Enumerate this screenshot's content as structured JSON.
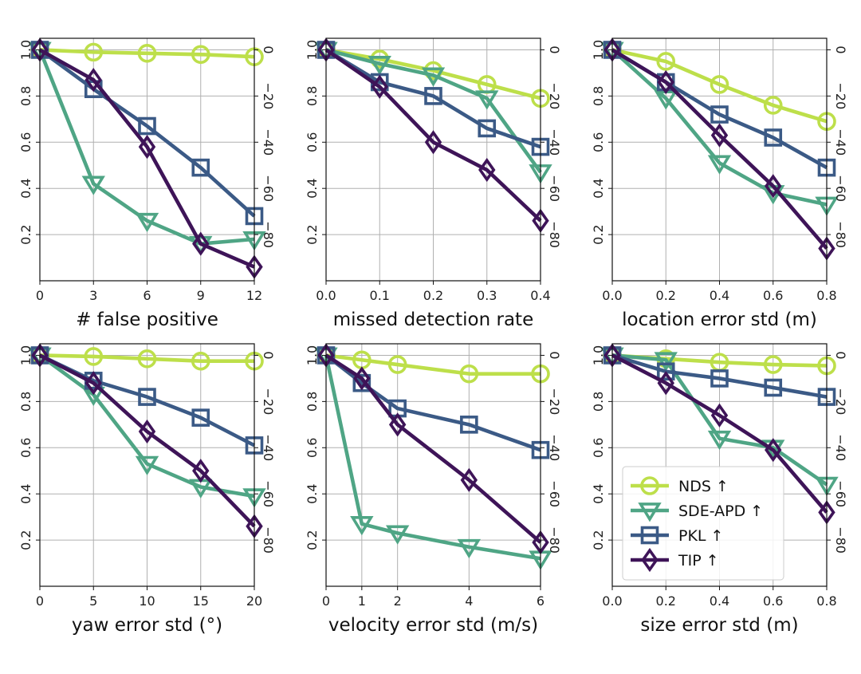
{
  "colors": {
    "NDS": "#bddf4a",
    "SDE-APD": "#4fa585",
    "PKL": "#3b5a86",
    "TIP": "#3e1458"
  },
  "legend": {
    "placement": "lower-right of bottom-right panel",
    "entries": [
      {
        "key": "NDS",
        "label": "NDS ↑",
        "marker": "circle"
      },
      {
        "key": "SDE-APD",
        "label": "SDE-APD ↑",
        "marker": "triangle-down"
      },
      {
        "key": "PKL",
        "label": "PKL ↑",
        "marker": "square"
      },
      {
        "key": "TIP",
        "label": "TIP ↑",
        "marker": "diamond"
      }
    ]
  },
  "chart_data": [
    {
      "type": "line",
      "xlabel": "# false positive",
      "x": [
        0,
        3,
        6,
        9,
        12
      ],
      "xticks": [
        0,
        3,
        6,
        9,
        12
      ],
      "xtick_labels": [
        "0",
        "3",
        "6",
        "9",
        "12"
      ],
      "xlim": [
        0,
        12
      ],
      "ylim_left": [
        0,
        1.05
      ],
      "yticks_left": [
        0.2,
        0.4,
        0.6,
        0.8,
        1.0
      ],
      "yticks_left_labels": [
        "0.2",
        "0.4",
        "0.6",
        "0.8",
        "1.0"
      ],
      "yticks_right_labels": [
        "0",
        "−20",
        "−40",
        "−60",
        "−80"
      ],
      "grid": true,
      "series": [
        {
          "key": "NDS",
          "values": [
            1.0,
            0.99,
            0.985,
            0.98,
            0.97
          ]
        },
        {
          "key": "SDE-APD",
          "values": [
            1.0,
            0.42,
            0.26,
            0.16,
            0.18
          ]
        },
        {
          "key": "PKL",
          "values": [
            1.0,
            0.83,
            0.67,
            0.49,
            0.28
          ]
        },
        {
          "key": "TIP",
          "values": [
            1.0,
            0.87,
            0.58,
            0.16,
            0.06
          ]
        }
      ]
    },
    {
      "type": "line",
      "xlabel": "missed detection rate",
      "x": [
        0.0,
        0.1,
        0.2,
        0.3,
        0.4
      ],
      "xticks": [
        0.0,
        0.1,
        0.2,
        0.3,
        0.4
      ],
      "xtick_labels": [
        "0.0",
        "0.1",
        "0.2",
        "0.3",
        "0.4"
      ],
      "xlim": [
        0,
        0.4
      ],
      "ylim_left": [
        0,
        1.05
      ],
      "yticks_left": [
        0.2,
        0.4,
        0.6,
        0.8,
        1.0
      ],
      "yticks_left_labels": [
        "0.2",
        "0.4",
        "0.6",
        "0.8",
        "1.0"
      ],
      "yticks_right_labels": [
        "0",
        "−20",
        "−40",
        "−60",
        "−80"
      ],
      "grid": true,
      "series": [
        {
          "key": "NDS",
          "values": [
            1.0,
            0.96,
            0.91,
            0.85,
            0.79
          ]
        },
        {
          "key": "SDE-APD",
          "values": [
            1.0,
            0.94,
            0.89,
            0.79,
            0.47
          ]
        },
        {
          "key": "PKL",
          "values": [
            1.0,
            0.86,
            0.8,
            0.66,
            0.58
          ]
        },
        {
          "key": "TIP",
          "values": [
            1.0,
            0.84,
            0.6,
            0.48,
            0.26
          ]
        }
      ]
    },
    {
      "type": "line",
      "xlabel": "location error std (m)",
      "x": [
        0.0,
        0.2,
        0.4,
        0.6,
        0.8
      ],
      "xticks": [
        0.0,
        0.2,
        0.4,
        0.6,
        0.8
      ],
      "xtick_labels": [
        "0.0",
        "0.2",
        "0.4",
        "0.6",
        "0.8"
      ],
      "xlim": [
        0,
        0.8
      ],
      "ylim_left": [
        0,
        1.05
      ],
      "yticks_left": [
        0.2,
        0.4,
        0.6,
        0.8,
        1.0
      ],
      "yticks_left_labels": [
        "0.2",
        "0.4",
        "0.6",
        "0.8",
        "1.0"
      ],
      "yticks_right_labels": [
        "0",
        "−20",
        "−40",
        "−60",
        "−80"
      ],
      "grid": true,
      "series": [
        {
          "key": "NDS",
          "values": [
            1.0,
            0.95,
            0.85,
            0.76,
            0.69
          ]
        },
        {
          "key": "SDE-APD",
          "values": [
            1.0,
            0.79,
            0.51,
            0.38,
            0.33
          ]
        },
        {
          "key": "PKL",
          "values": [
            1.0,
            0.86,
            0.72,
            0.62,
            0.49
          ]
        },
        {
          "key": "TIP",
          "values": [
            1.0,
            0.86,
            0.63,
            0.41,
            0.14
          ]
        }
      ]
    },
    {
      "type": "line",
      "xlabel": "yaw error std (°)",
      "x": [
        0,
        5,
        10,
        15,
        20
      ],
      "xticks": [
        0,
        5,
        10,
        15,
        20
      ],
      "xtick_labels": [
        "0",
        "5",
        "10",
        "15",
        "20"
      ],
      "xlim": [
        0,
        20
      ],
      "ylim_left": [
        0,
        1.05
      ],
      "yticks_left": [
        0.2,
        0.4,
        0.6,
        0.8,
        1.0
      ],
      "yticks_left_labels": [
        "0.2",
        "0.4",
        "0.6",
        "0.8",
        "1.0"
      ],
      "yticks_right_labels": [
        "0",
        "−20",
        "−40",
        "−60",
        "−80"
      ],
      "grid": true,
      "series": [
        {
          "key": "NDS",
          "values": [
            1.0,
            0.995,
            0.985,
            0.975,
            0.975
          ]
        },
        {
          "key": "SDE-APD",
          "values": [
            1.0,
            0.83,
            0.53,
            0.43,
            0.39
          ]
        },
        {
          "key": "PKL",
          "values": [
            1.0,
            0.89,
            0.82,
            0.73,
            0.61
          ]
        },
        {
          "key": "TIP",
          "values": [
            1.0,
            0.88,
            0.67,
            0.5,
            0.26
          ]
        }
      ]
    },
    {
      "type": "line",
      "xlabel": "velocity error std (m/s)",
      "x": [
        0,
        1,
        2,
        4,
        6
      ],
      "xticks": [
        0,
        1,
        2,
        4,
        6
      ],
      "xtick_labels": [
        "0",
        "1",
        "2",
        "4",
        "6"
      ],
      "xlim": [
        0,
        6
      ],
      "ylim_left": [
        0,
        1.05
      ],
      "yticks_left": [
        0.2,
        0.4,
        0.6,
        0.8,
        1.0
      ],
      "yticks_left_labels": [
        "0.2",
        "0.4",
        "0.6",
        "0.8",
        "1.0"
      ],
      "yticks_right_labels": [
        "0",
        "−20",
        "−40",
        "−60",
        "−80"
      ],
      "grid": true,
      "series": [
        {
          "key": "NDS",
          "values": [
            1.0,
            0.98,
            0.96,
            0.92,
            0.92
          ]
        },
        {
          "key": "SDE-APD",
          "values": [
            1.0,
            0.27,
            0.23,
            0.17,
            0.12
          ]
        },
        {
          "key": "PKL",
          "values": [
            1.0,
            0.88,
            0.77,
            0.7,
            0.59
          ]
        },
        {
          "key": "TIP",
          "values": [
            1.0,
            0.9,
            0.7,
            0.46,
            0.19
          ]
        }
      ]
    },
    {
      "type": "line",
      "xlabel": "size error std (m)",
      "x": [
        0.0,
        0.2,
        0.4,
        0.6,
        0.8
      ],
      "xticks": [
        0.0,
        0.2,
        0.4,
        0.6,
        0.8
      ],
      "xtick_labels": [
        "0.0",
        "0.2",
        "0.4",
        "0.6",
        "0.8"
      ],
      "xlim": [
        0,
        0.8
      ],
      "ylim_left": [
        0,
        1.05
      ],
      "yticks_left": [
        0.2,
        0.4,
        0.6,
        0.8,
        1.0
      ],
      "yticks_left_labels": [
        "0.2",
        "0.4",
        "0.6",
        "0.8",
        "1.0"
      ],
      "yticks_right_labels": [
        "0",
        "−20",
        "−40",
        "−60",
        "−80"
      ],
      "grid": true,
      "series": [
        {
          "key": "NDS",
          "values": [
            1.0,
            0.985,
            0.97,
            0.96,
            0.955
          ]
        },
        {
          "key": "SDE-APD",
          "values": [
            1.0,
            0.98,
            0.64,
            0.6,
            0.44
          ]
        },
        {
          "key": "PKL",
          "values": [
            1.0,
            0.93,
            0.9,
            0.86,
            0.82
          ]
        },
        {
          "key": "TIP",
          "values": [
            1.0,
            0.88,
            0.74,
            0.59,
            0.32
          ]
        }
      ]
    }
  ]
}
